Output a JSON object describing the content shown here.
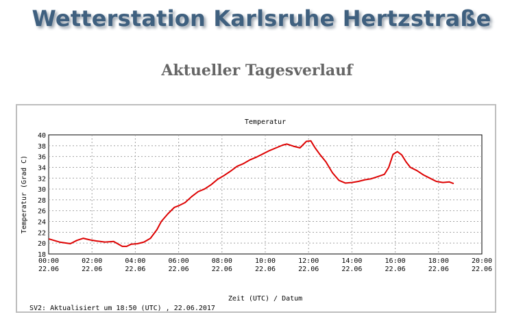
{
  "header": {
    "site_title": "Wetterstation Karlsruhe Hertzstraße",
    "page_title": "Aktueller Tagesverlauf"
  },
  "footer_note": "SV2: Aktualisiert um 18:50 (UTC) , 22.06.2017",
  "colors": {
    "series": "#dd0000",
    "grid": "#a0a0a0",
    "title": "#3f607f",
    "subtitle": "#666666"
  },
  "chart_data": {
    "type": "line",
    "title": "Temperatur",
    "xlabel": "Zeit (UTC) / Datum",
    "ylabel": "Temperatur (Grad C)",
    "xlim": [
      0,
      20
    ],
    "ylim": [
      18,
      40
    ],
    "x_tick_values": [
      0,
      2,
      4,
      6,
      8,
      10,
      12,
      14,
      16,
      18,
      20
    ],
    "x_tick_labels": [
      "00:00",
      "02:00",
      "04:00",
      "06:00",
      "08:00",
      "10:00",
      "12:00",
      "14:00",
      "16:00",
      "18:00",
      "20:00"
    ],
    "x_tick_dates": [
      "22.06",
      "22.06",
      "22.06",
      "22.06",
      "22.06",
      "22.06",
      "22.06",
      "22.06",
      "22.06",
      "22.06",
      "22.06"
    ],
    "y_ticks": [
      18,
      20,
      22,
      24,
      26,
      28,
      30,
      32,
      34,
      36,
      38,
      40
    ],
    "grid": true,
    "series": [
      {
        "color": "#dd0000",
        "x": [
          0,
          0.5,
          1,
          1.3,
          1.6,
          1.9,
          2.2,
          2.6,
          3.0,
          3.4,
          3.6,
          3.8,
          4.1,
          4.4,
          4.7,
          5.0,
          5.2,
          5.5,
          5.8,
          6.0,
          6.3,
          6.6,
          6.9,
          7.2,
          7.5,
          7.8,
          8.1,
          8.4,
          8.7,
          9.0,
          9.3,
          9.6,
          9.9,
          10.2,
          10.5,
          10.8,
          11.0,
          11.3,
          11.6,
          11.9,
          12.1,
          12.3,
          12.5,
          12.8,
          13.1,
          13.4,
          13.7,
          14.0,
          14.3,
          14.6,
          14.9,
          15.2,
          15.5,
          15.7,
          15.9,
          16.1,
          16.3,
          16.5,
          16.7,
          17.0,
          17.3,
          17.6,
          17.9,
          18.2,
          18.5,
          18.7
        ],
        "y": [
          20.8,
          20.2,
          19.9,
          20.5,
          20.9,
          20.6,
          20.4,
          20.2,
          20.3,
          19.4,
          19.4,
          19.8,
          19.9,
          20.2,
          20.9,
          22.5,
          24.0,
          25.4,
          26.6,
          26.9,
          27.5,
          28.6,
          29.5,
          30.0,
          30.8,
          31.8,
          32.5,
          33.3,
          34.2,
          34.7,
          35.4,
          35.9,
          36.5,
          37.1,
          37.6,
          38.1,
          38.3,
          37.9,
          37.6,
          38.8,
          38.9,
          37.6,
          36.5,
          35.0,
          33.0,
          31.6,
          31.1,
          31.2,
          31.4,
          31.7,
          31.9,
          32.3,
          32.7,
          34.0,
          36.4,
          36.9,
          36.3,
          35.0,
          34.0,
          33.4,
          32.6,
          32.0,
          31.4,
          31.2,
          31.3,
          31.0
        ]
      }
    ]
  }
}
